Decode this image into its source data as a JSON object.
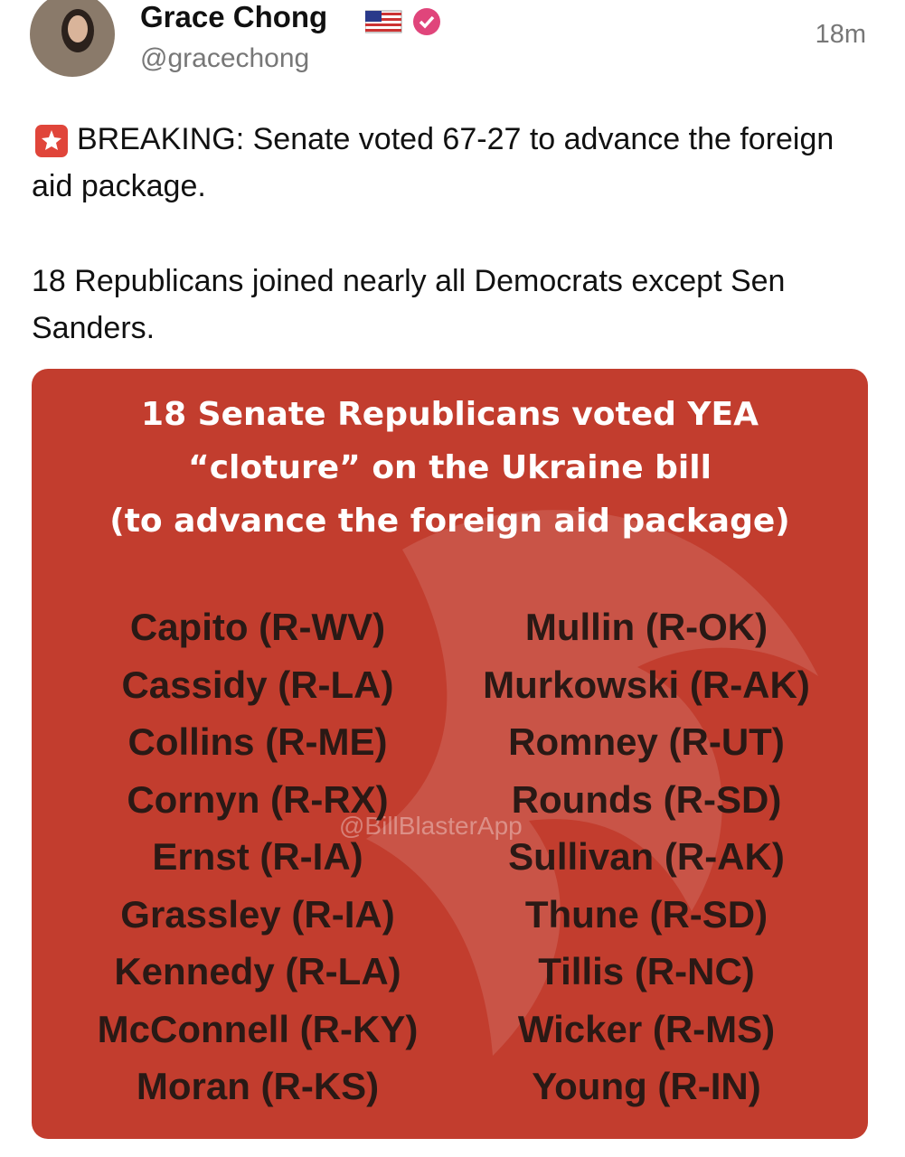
{
  "author": {
    "name": "Grace Chong",
    "handle": "@gracechong",
    "time": "18m"
  },
  "post": {
    "paragraphs": [
      "BREAKING: Senate voted 67-27 to advance the foreign aid package.",
      "18 Republicans joined nearly all Democrats except Sen Sanders."
    ]
  },
  "image": {
    "title_lines": [
      "18 Senate Republicans voted YEA",
      "“cloture” on the Ukraine bill",
      "(to advance the foreign aid package)"
    ],
    "left_column": [
      "Capito (R-WV)",
      "Cassidy (R-LA)",
      "Collins (R-ME)",
      "Cornyn (R-RX)",
      "Ernst (R-IA)",
      "Grassley (R-IA)",
      "Kennedy (R-LA)",
      "McConnell (R-KY)",
      "Moran (R-KS)"
    ],
    "right_column": [
      "Mullin (R-OK)",
      "Murkowski (R-AK)",
      "Romney (R-UT)",
      "Rounds (R-SD)",
      "Sullivan (R-AK)",
      "Thune (R-SD)",
      "Tillis (R-NC)",
      "Wicker (R-MS)",
      "Young (R-IN)"
    ],
    "watermark": "@BillBlasterApp"
  }
}
